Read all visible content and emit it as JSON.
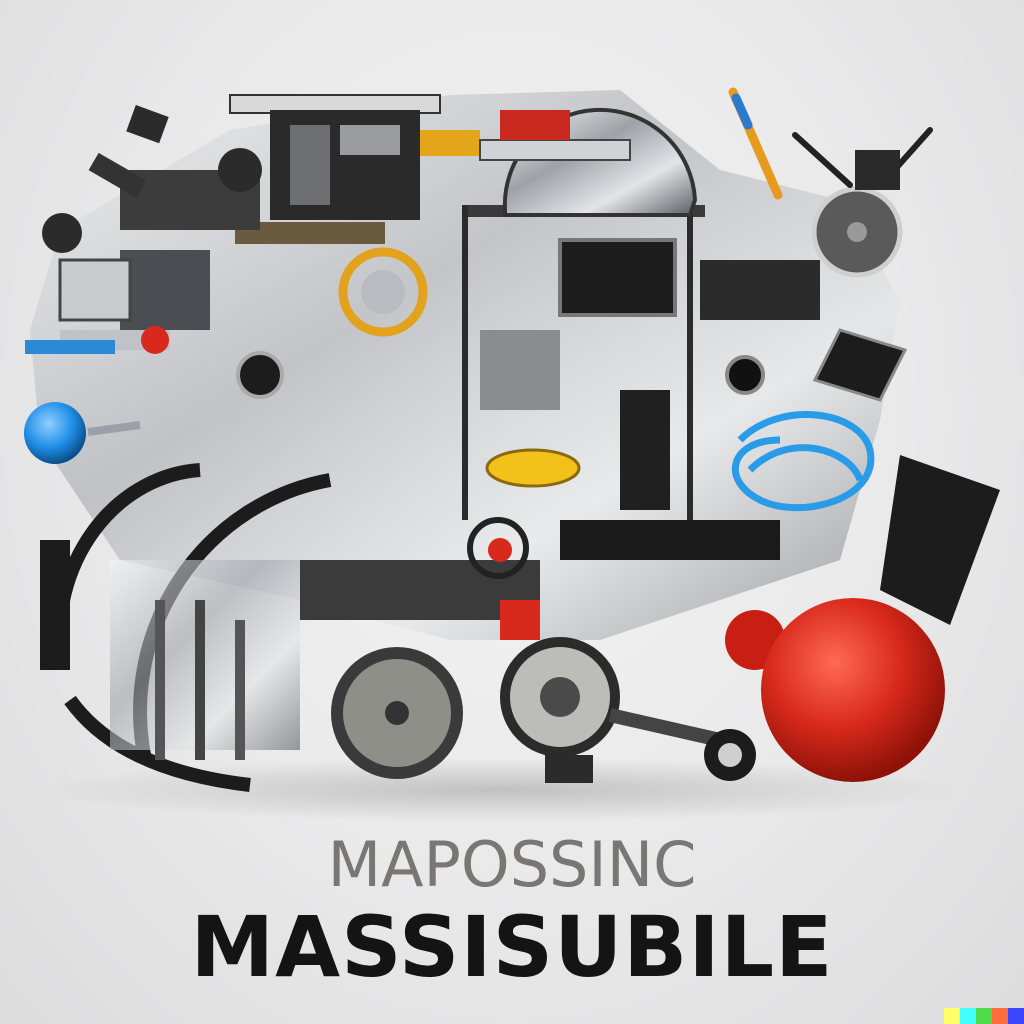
{
  "caption": {
    "subtitle": "MAPOSSINC",
    "title": "MASSISUBILE"
  },
  "colors": {
    "background": "#e9e9ea",
    "machine_dark": "#1e1e1e",
    "chrome": "#b9bcc0",
    "red_ball": "#d8291c",
    "blue_ball": "#1f8ee6",
    "yellow_part": "#f2c21a",
    "subtitle_text": "#7a7675",
    "title_text": "#141414"
  },
  "watermark": {
    "colors": [
      "#ffff66",
      "#42ffff",
      "#51da4c",
      "#ff6e3c",
      "#3c46ff"
    ]
  }
}
